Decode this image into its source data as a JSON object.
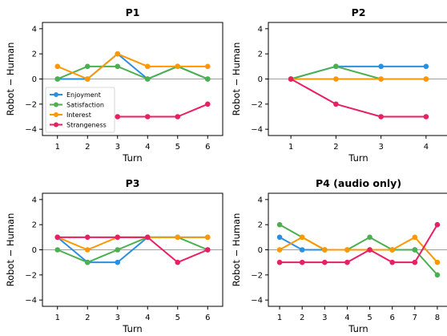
{
  "colors": {
    "Enjoyment": "#2b8fe0",
    "Satisfaction": "#4caf50",
    "Interest": "#ff9800",
    "Strangeness": "#e91e63",
    "zero_line": "#a0a0a0"
  },
  "chart_data": [
    {
      "type": "line",
      "title": "P1",
      "xlabel": "Turn",
      "ylabel": "Robot − Human",
      "x": [
        1,
        2,
        3,
        4,
        5,
        6
      ],
      "xticks": [
        1,
        2,
        3,
        4,
        5,
        6
      ],
      "xlim": [
        0.5,
        6.5
      ],
      "ylim": [
        -4.5,
        4.5
      ],
      "yticks": [
        -4,
        -2,
        0,
        2,
        4
      ],
      "legend": "lower-left",
      "series": [
        {
          "name": "Enjoyment",
          "values": [
            0,
            0,
            2,
            0,
            1,
            0
          ]
        },
        {
          "name": "Satisfaction",
          "values": [
            0,
            1,
            1,
            0,
            1,
            0
          ]
        },
        {
          "name": "Interest",
          "values": [
            1,
            0,
            2,
            1,
            1,
            1
          ]
        },
        {
          "name": "Strangeness",
          "values": [
            null,
            null,
            -3,
            -3,
            -3,
            -2
          ]
        }
      ]
    },
    {
      "type": "line",
      "title": "P2",
      "xlabel": "Turn",
      "ylabel": "Robot − Human",
      "x": [
        1,
        2,
        3,
        4
      ],
      "xticks": [
        1,
        2,
        3,
        4
      ],
      "xlim": [
        0.5,
        4.5
      ],
      "ylim": [
        -4.5,
        4.5
      ],
      "yticks": [
        -4,
        -2,
        0,
        2,
        4
      ],
      "series": [
        {
          "name": "Enjoyment",
          "values": [
            0,
            1,
            1,
            1
          ]
        },
        {
          "name": "Satisfaction",
          "values": [
            0,
            1,
            0,
            0
          ]
        },
        {
          "name": "Interest",
          "values": [
            0,
            0,
            0,
            0
          ]
        },
        {
          "name": "Strangeness",
          "values": [
            0,
            -2,
            -3,
            -3
          ]
        }
      ]
    },
    {
      "type": "line",
      "title": "P3",
      "xlabel": "Turn",
      "ylabel": "Robot − Human",
      "x": [
        1,
        2,
        3,
        4,
        5,
        6
      ],
      "xticks": [
        1,
        2,
        3,
        4,
        5,
        6
      ],
      "xlim": [
        0.5,
        6.5
      ],
      "ylim": [
        -4.5,
        4.5
      ],
      "yticks": [
        -4,
        -2,
        0,
        2,
        4
      ],
      "series": [
        {
          "name": "Enjoyment",
          "values": [
            1,
            -1,
            -1,
            1,
            1,
            1
          ]
        },
        {
          "name": "Satisfaction",
          "values": [
            0,
            -1,
            0,
            1,
            1,
            0
          ]
        },
        {
          "name": "Interest",
          "values": [
            1,
            0,
            1,
            1,
            1,
            1
          ]
        },
        {
          "name": "Strangeness",
          "values": [
            1,
            1,
            1,
            1,
            -1,
            0
          ]
        }
      ]
    },
    {
      "type": "line",
      "title": "P4 (audio only)",
      "xlabel": "Turn",
      "ylabel": "Robot − Human",
      "x": [
        1,
        2,
        3,
        4,
        5,
        6,
        7,
        8
      ],
      "xticks": [
        1,
        2,
        3,
        4,
        5,
        6,
        7,
        8
      ],
      "xlim": [
        0.5,
        8.5
      ],
      "ylim": [
        -4.5,
        4.5
      ],
      "yticks": [
        -4,
        -2,
        0,
        2,
        4
      ],
      "series": [
        {
          "name": "Enjoyment",
          "values": [
            1,
            0,
            0,
            0,
            0,
            0,
            0,
            null
          ]
        },
        {
          "name": "Satisfaction",
          "values": [
            2,
            1,
            0,
            0,
            1,
            0,
            0,
            -2
          ]
        },
        {
          "name": "Interest",
          "values": [
            0,
            1,
            0,
            0,
            0,
            0,
            1,
            -1
          ]
        },
        {
          "name": "Strangeness",
          "values": [
            -1,
            -1,
            -1,
            -1,
            0,
            -1,
            -1,
            2
          ]
        }
      ]
    }
  ]
}
